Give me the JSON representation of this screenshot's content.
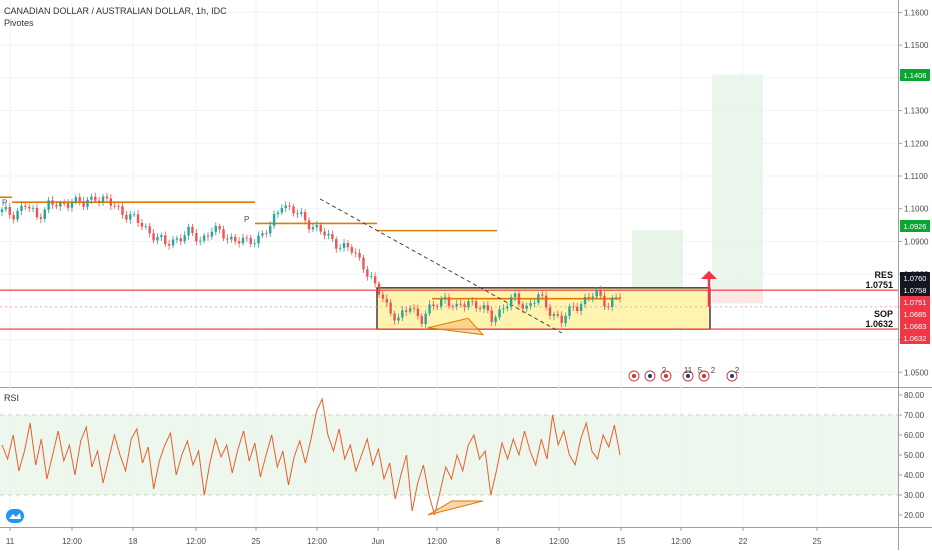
{
  "header": {
    "symbol_title": "CANADIAN DOLLAR / AUSTRALIAN DOLLAR, 1h, IDC",
    "indicator": "Pivotes"
  },
  "rsi_panel": {
    "label": "RSI"
  },
  "levels": {
    "res_label": "RES",
    "res_value": "1.0751",
    "sop_label": "SOP",
    "sop_value": "1.0632"
  },
  "colors": {
    "up": "#26a69a",
    "down": "#ef5350",
    "resistance_line": "#e53935",
    "pivot_line": "#e07b00",
    "zone_fill": "#fff3b0",
    "rsi_line": "#e8602c",
    "arrow": "#f23645",
    "green_badge": "#0aa532",
    "red_badge": "#f23645"
  },
  "chart_data": [
    {
      "type": "candlestick",
      "title": "CANADIAN DOLLAR / AUSTRALIAN DOLLAR, 1h, IDC",
      "x_tick_labels": [
        "11",
        "12:00",
        "18",
        "12:00",
        "25",
        "12:00",
        "Jun",
        "12:00",
        "8",
        "12:00",
        "15",
        "12:00",
        "22",
        "25"
      ],
      "y_tick_labels": [
        "1.1600",
        "1.1500",
        "1.1400",
        "1.1300",
        "1.1200",
        "1.1100",
        "1.1000",
        "1.0900",
        "1.0800",
        "1.0700",
        "1.0600",
        "1.0500"
      ],
      "ylim": [
        1.0455,
        1.1638
      ],
      "price_badges": [
        {
          "value": "1.1406",
          "color": "green"
        },
        {
          "value": "1.0926",
          "color": "green"
        },
        {
          "value": "1.0760",
          "color": "black"
        },
        {
          "value": "1.0758",
          "color": "black"
        },
        {
          "value": "1.0751",
          "color": "red"
        },
        {
          "value": "1.0685",
          "color": "red"
        },
        {
          "value": "1.0683",
          "color": "red"
        },
        {
          "value": "1.0632",
          "color": "red"
        }
      ],
      "horizontal_levels": [
        {
          "name": "RES",
          "value": 1.0751
        },
        {
          "name": "SOP",
          "value": 1.0632
        }
      ],
      "close_path": [
        [
          0,
          1.099
        ],
        [
          3,
          1.0985
        ],
        [
          6,
          1.101
        ],
        [
          9,
          1.0975
        ],
        [
          12,
          1.1015
        ],
        [
          15,
          1.1005
        ],
        [
          18,
          1.103
        ],
        [
          21,
          1.101
        ],
        [
          24,
          1.104
        ],
        [
          27,
          1.102
        ],
        [
          30,
          1.1
        ],
        [
          33,
          1.0975
        ],
        [
          36,
          1.095
        ],
        [
          39,
          1.092
        ],
        [
          42,
          1.089
        ],
        [
          45,
          1.091
        ],
        [
          48,
          1.0925
        ],
        [
          51,
          1.0905
        ],
        [
          54,
          1.0935
        ],
        [
          57,
          1.092
        ],
        [
          60,
          1.0905
        ],
        [
          63,
          1.0895
        ],
        [
          66,
          1.0915
        ],
        [
          69,
          1.094
        ],
        [
          72,
          1.102
        ],
        [
          75,
          1.099
        ],
        [
          78,
          1.0965
        ],
        [
          81,
          1.094
        ],
        [
          84,
          1.091
        ],
        [
          87,
          1.089
        ],
        [
          90,
          1.087
        ],
        [
          93,
          1.083
        ],
        [
          96,
          1.076
        ],
        [
          99,
          1.0705
        ],
        [
          102,
          1.066
        ],
        [
          105,
          1.07
        ],
        [
          108,
          1.0665
        ],
        [
          111,
          1.07
        ],
        [
          114,
          1.073
        ],
        [
          117,
          1.069
        ],
        [
          120,
          1.072
        ],
        [
          123,
          1.07
        ],
        [
          126,
          1.0665
        ],
        [
          129,
          1.07
        ],
        [
          132,
          1.0725
        ],
        [
          135,
          1.07
        ],
        [
          138,
          1.073
        ],
        [
          141,
          1.069
        ],
        [
          144,
          1.0655
        ],
        [
          147,
          1.07
        ],
        [
          150,
          1.072
        ],
        [
          153,
          1.074
        ],
        [
          156,
          1.071
        ],
        [
          159,
          1.073
        ]
      ]
    },
    {
      "type": "line",
      "title": "RSI",
      "y_tick_labels": [
        "80.00",
        "70.00",
        "60.00",
        "50.00",
        "40.00",
        "30.00",
        "20.00"
      ],
      "ylim": [
        14,
        83
      ],
      "band": [
        30,
        70
      ],
      "values": [
        55,
        48,
        60,
        42,
        52,
        66,
        45,
        58,
        38,
        50,
        62,
        47,
        55,
        40,
        57,
        64,
        44,
        52,
        36,
        48,
        60,
        50,
        42,
        58,
        63,
        46,
        54,
        33,
        47,
        55,
        61,
        40,
        50,
        57,
        45,
        52,
        30,
        46,
        58,
        49,
        55,
        41,
        53,
        62,
        47,
        56,
        39,
        50,
        60,
        44,
        52,
        35,
        49,
        57,
        46,
        58,
        72,
        78,
        60,
        52,
        63,
        48,
        55,
        42,
        50,
        58,
        45,
        53,
        38,
        46,
        28,
        40,
        50,
        22,
        36,
        45,
        30,
        20,
        32,
        44,
        38,
        50,
        42,
        55,
        60,
        48,
        52,
        30,
        42,
        56,
        48,
        58,
        50,
        62,
        52,
        45,
        58,
        48,
        70,
        55,
        62,
        50,
        45,
        58,
        66,
        52,
        48,
        60,
        54,
        65,
        50
      ]
    }
  ],
  "event_badges": [
    "2",
    "11",
    "5",
    "2",
    "2"
  ]
}
